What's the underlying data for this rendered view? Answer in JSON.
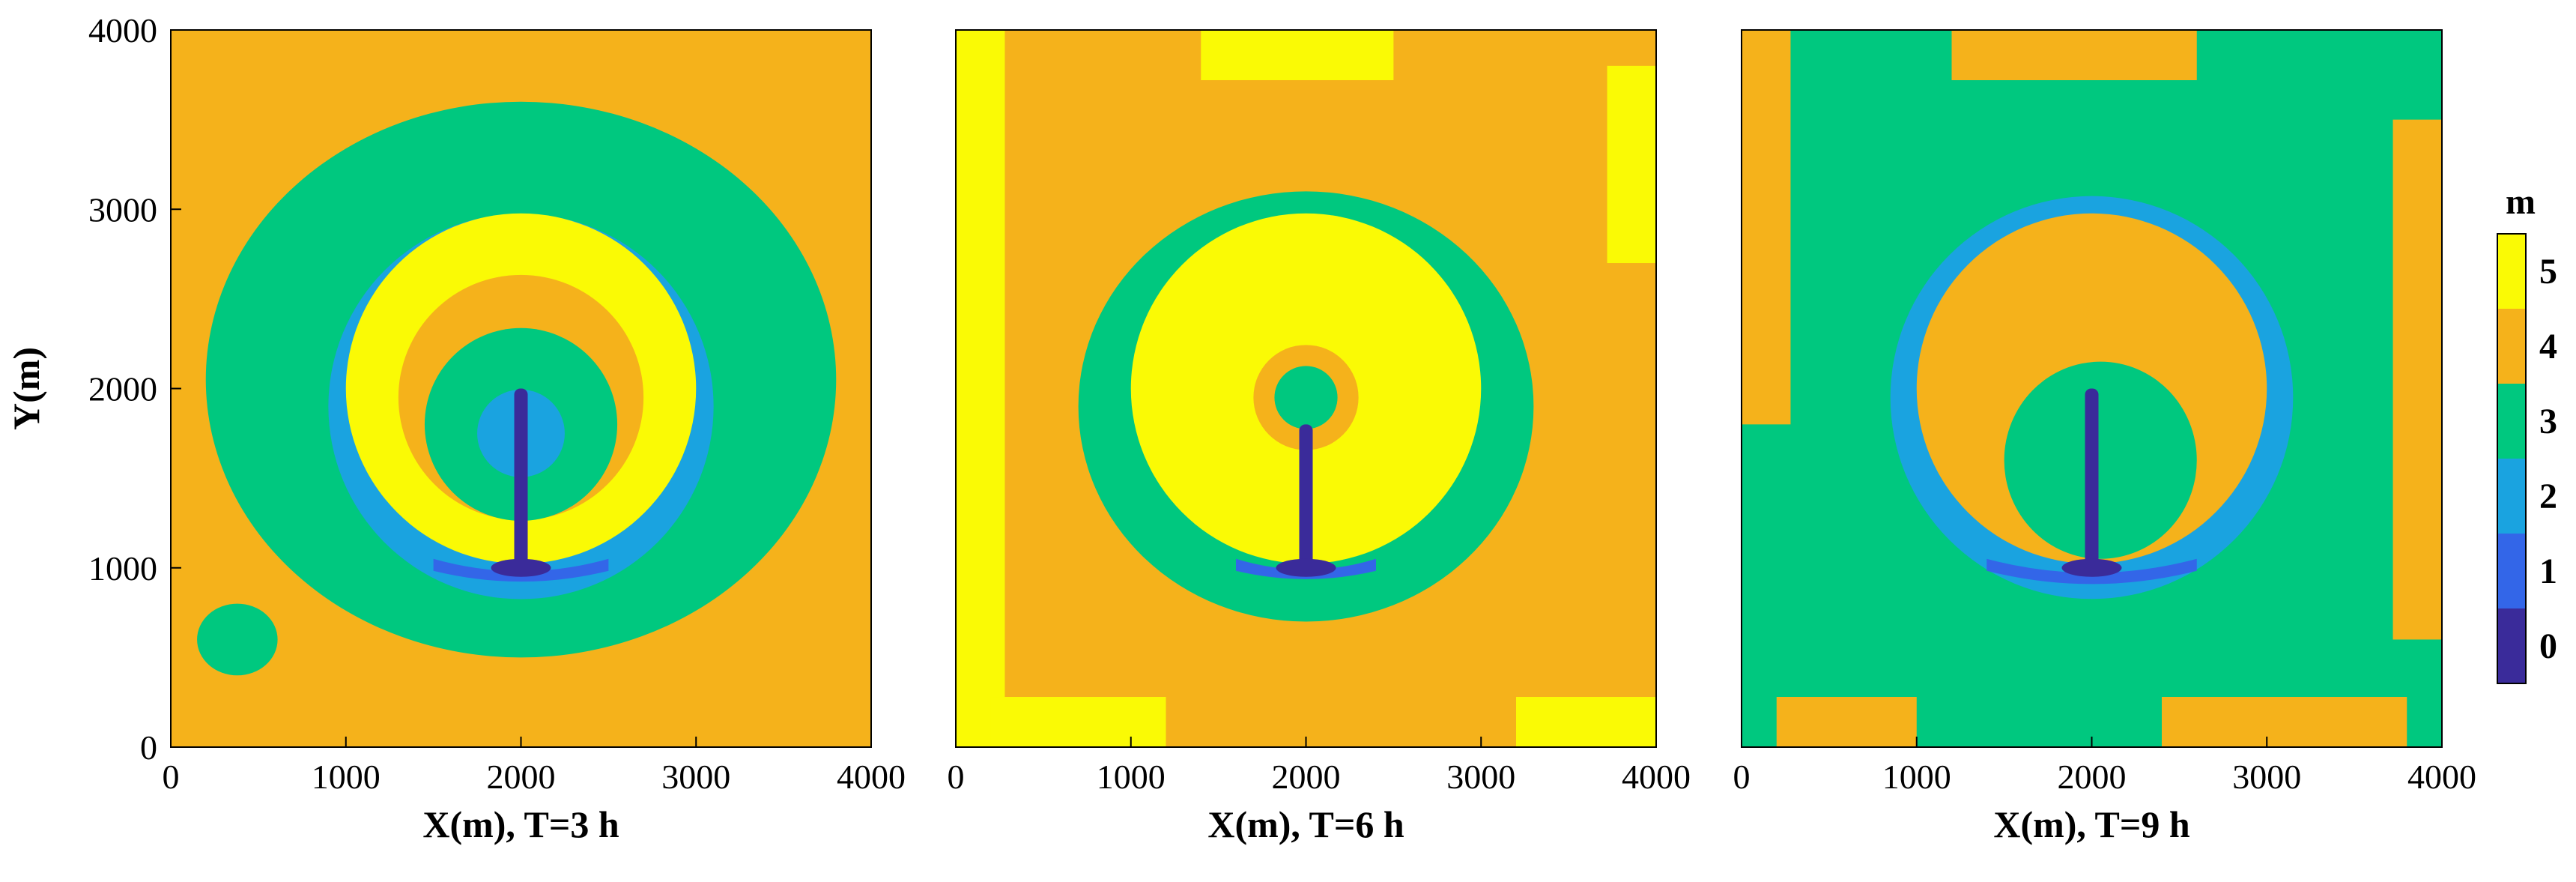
{
  "chart_data": [
    {
      "type": "contour",
      "panel": "T=3 h",
      "xlabel": "X(m), T=3 h",
      "ylabel": "Y(m)",
      "xlim": [
        0,
        4000
      ],
      "ylim": [
        0,
        4000
      ],
      "xticks": [
        "0",
        "1000",
        "2000",
        "3000",
        "4000"
      ],
      "yticks": [
        "0",
        "1000",
        "2000",
        "3000",
        "4000"
      ],
      "background_level": 4,
      "regions": [
        {
          "level": 3,
          "shape": "blob",
          "cx": 2000,
          "cy": 2050,
          "rx": 1800,
          "ry": 1550
        },
        {
          "level": 3,
          "shape": "blob",
          "cx": 380,
          "cy": 600,
          "rx": 230,
          "ry": 200
        },
        {
          "level": 2,
          "shape": "ring",
          "cx": 2000,
          "cy": 1900,
          "r": 1100
        },
        {
          "level": 5,
          "shape": "disk",
          "cx": 2000,
          "cy": 2000,
          "r": 1000
        },
        {
          "level": 4,
          "shape": "disk",
          "cx": 2000,
          "cy": 1950,
          "r": 700
        },
        {
          "level": 3,
          "shape": "disk",
          "cx": 2000,
          "cy": 1800,
          "r": 550
        },
        {
          "level": 2,
          "shape": "disk",
          "cx": 2000,
          "cy": 1750,
          "r": 250
        },
        {
          "level": 1,
          "shape": "arc",
          "cx": 2000,
          "cy": 1000,
          "r": 500
        },
        {
          "level": 0,
          "shape": "jet",
          "x": 2000,
          "y0": 1000,
          "y1": 2000
        }
      ]
    },
    {
      "type": "contour",
      "panel": "T=6 h",
      "xlabel": "X(m), T=6 h",
      "xlim": [
        0,
        4000
      ],
      "ylim": [
        0,
        4000
      ],
      "xticks": [
        "0",
        "1000",
        "2000",
        "3000",
        "4000"
      ],
      "background_level": 4,
      "regions": [
        {
          "level": 5,
          "shape": "edge",
          "side": "left",
          "from": 0,
          "to": 4000
        },
        {
          "level": 5,
          "shape": "edge",
          "side": "top",
          "from": 1400,
          "to": 2500
        },
        {
          "level": 5,
          "shape": "edge",
          "side": "right",
          "from": 2700,
          "to": 3800
        },
        {
          "level": 5,
          "shape": "edge",
          "side": "bottom",
          "from": 200,
          "to": 1200
        },
        {
          "level": 5,
          "shape": "edge",
          "side": "bottom",
          "from": 3200,
          "to": 4000
        },
        {
          "level": 3,
          "shape": "blob",
          "cx": 2000,
          "cy": 1900,
          "rx": 1300,
          "ry": 1200
        },
        {
          "level": 5,
          "shape": "disk",
          "cx": 2000,
          "cy": 2000,
          "r": 1000
        },
        {
          "level": 4,
          "shape": "disk",
          "cx": 2000,
          "cy": 1950,
          "r": 300
        },
        {
          "level": 3,
          "shape": "disk",
          "cx": 2000,
          "cy": 1950,
          "r": 180
        },
        {
          "level": 1,
          "shape": "arc",
          "cx": 2000,
          "cy": 1000,
          "r": 400
        },
        {
          "level": 0,
          "shape": "jet",
          "x": 2000,
          "y0": 1000,
          "y1": 1800
        }
      ]
    },
    {
      "type": "contour",
      "panel": "T=9 h",
      "xlabel": "X(m), T=9 h",
      "xlim": [
        0,
        4000
      ],
      "ylim": [
        0,
        4000
      ],
      "xticks": [
        "0",
        "1000",
        "2000",
        "3000",
        "4000"
      ],
      "background_level": 3,
      "regions": [
        {
          "level": 4,
          "shape": "edge",
          "side": "left",
          "from": 1800,
          "to": 4000
        },
        {
          "level": 4,
          "shape": "edge",
          "side": "top",
          "from": 1200,
          "to": 2600
        },
        {
          "level": 4,
          "shape": "edge",
          "side": "right",
          "from": 600,
          "to": 3500
        },
        {
          "level": 4,
          "shape": "edge",
          "side": "bottom",
          "from": 200,
          "to": 1000
        },
        {
          "level": 4,
          "shape": "edge",
          "side": "bottom",
          "from": 2400,
          "to": 3800
        },
        {
          "level": 2,
          "shape": "ring",
          "cx": 2000,
          "cy": 1950,
          "r": 1150
        },
        {
          "level": 4,
          "shape": "disk",
          "cx": 2000,
          "cy": 2000,
          "r": 1000
        },
        {
          "level": 3,
          "shape": "blob",
          "cx": 2050,
          "cy": 1600,
          "rx": 550,
          "ry": 550
        },
        {
          "level": 1,
          "shape": "arc",
          "cx": 2000,
          "cy": 1000,
          "r": 600
        },
        {
          "level": 0,
          "shape": "jet",
          "x": 2000,
          "y0": 1000,
          "y1": 2000
        }
      ]
    }
  ],
  "colorbar": {
    "title": "m",
    "ticks": [
      "0",
      "1",
      "2",
      "3",
      "4",
      "5"
    ],
    "levels": [
      {
        "level": 0,
        "color": "#3a2b9a"
      },
      {
        "level": 1,
        "color": "#3366e8"
      },
      {
        "level": 2,
        "color": "#1aa3e0"
      },
      {
        "level": 3,
        "color": "#00c87f"
      },
      {
        "level": 4,
        "color": "#f5b21b"
      },
      {
        "level": 5,
        "color": "#fafa05"
      }
    ]
  }
}
